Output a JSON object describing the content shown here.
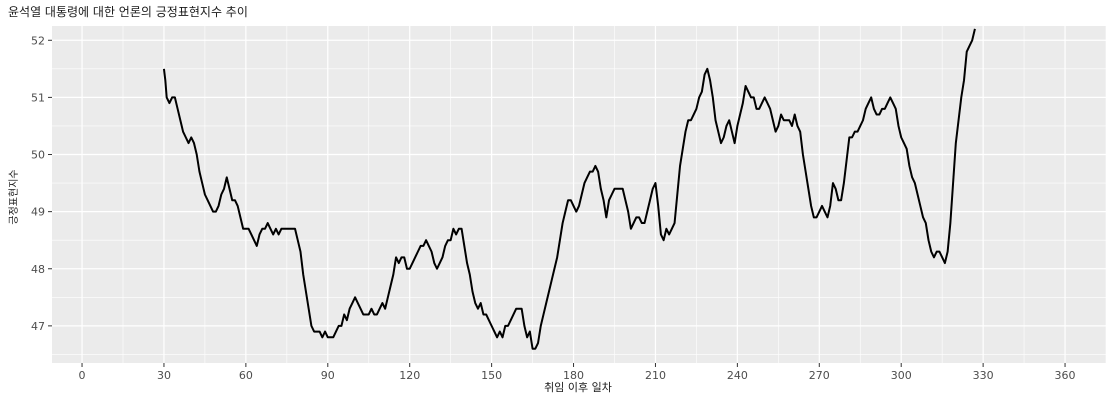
{
  "chart_data": {
    "type": "line",
    "title": "윤석열 대통령에 대한 언론의 긍정표현지수 추이",
    "xlabel": "취임 이후 일차",
    "ylabel": "긍정표현지수",
    "xlim": [
      -11,
      375
    ],
    "ylim": [
      46.35,
      52.25
    ],
    "x_ticks": [
      0,
      30,
      60,
      90,
      120,
      150,
      180,
      210,
      240,
      270,
      300,
      330,
      360
    ],
    "y_ticks": [
      47,
      48,
      49,
      50,
      51,
      52
    ],
    "grid": true,
    "colors": {
      "panel": "#ebebeb",
      "grid": "#ffffff",
      "line": "#000000"
    },
    "series": [
      {
        "points": [
          [
            30,
            51.5
          ],
          [
            30.5,
            51.3
          ],
          [
            31,
            51.0
          ],
          [
            32,
            50.9
          ],
          [
            33,
            51.0
          ],
          [
            34,
            51.0
          ],
          [
            35,
            50.8
          ],
          [
            36,
            50.6
          ],
          [
            37,
            50.4
          ],
          [
            38,
            50.3
          ],
          [
            39,
            50.2
          ],
          [
            40,
            50.3
          ],
          [
            41,
            50.2
          ],
          [
            42,
            50.0
          ],
          [
            43,
            49.7
          ],
          [
            44,
            49.5
          ],
          [
            45,
            49.3
          ],
          [
            46,
            49.2
          ],
          [
            47,
            49.1
          ],
          [
            48,
            49.0
          ],
          [
            49,
            49.0
          ],
          [
            50,
            49.1
          ],
          [
            51,
            49.3
          ],
          [
            52,
            49.4
          ],
          [
            53,
            49.6
          ],
          [
            54,
            49.4
          ],
          [
            55,
            49.2
          ],
          [
            56,
            49.2
          ],
          [
            57,
            49.1
          ],
          [
            58,
            48.9
          ],
          [
            59,
            48.7
          ],
          [
            60,
            48.7
          ],
          [
            61,
            48.7
          ],
          [
            62,
            48.6
          ],
          [
            63,
            48.5
          ],
          [
            64,
            48.4
          ],
          [
            65,
            48.6
          ],
          [
            66,
            48.7
          ],
          [
            67,
            48.7
          ],
          [
            68,
            48.8
          ],
          [
            69,
            48.7
          ],
          [
            70,
            48.6
          ],
          [
            71,
            48.7
          ],
          [
            72,
            48.6
          ],
          [
            73,
            48.7
          ],
          [
            74,
            48.7
          ],
          [
            75,
            48.7
          ],
          [
            76,
            48.7
          ],
          [
            77,
            48.7
          ],
          [
            78,
            48.7
          ],
          [
            79,
            48.5
          ],
          [
            80,
            48.3
          ],
          [
            81,
            47.9
          ],
          [
            82,
            47.6
          ],
          [
            83,
            47.3
          ],
          [
            84,
            47.0
          ],
          [
            85,
            46.9
          ],
          [
            86,
            46.9
          ],
          [
            87,
            46.9
          ],
          [
            88,
            46.8
          ],
          [
            89,
            46.9
          ],
          [
            90,
            46.8
          ],
          [
            91,
            46.8
          ],
          [
            92,
            46.8
          ],
          [
            93,
            46.9
          ],
          [
            94,
            47.0
          ],
          [
            95,
            47.0
          ],
          [
            96,
            47.2
          ],
          [
            97,
            47.1
          ],
          [
            98,
            47.3
          ],
          [
            99,
            47.4
          ],
          [
            100,
            47.5
          ],
          [
            101,
            47.4
          ],
          [
            102,
            47.3
          ],
          [
            103,
            47.2
          ],
          [
            104,
            47.2
          ],
          [
            105,
            47.2
          ],
          [
            106,
            47.3
          ],
          [
            107,
            47.2
          ],
          [
            108,
            47.2
          ],
          [
            109,
            47.3
          ],
          [
            110,
            47.4
          ],
          [
            111,
            47.3
          ],
          [
            112,
            47.5
          ],
          [
            113,
            47.7
          ],
          [
            114,
            47.9
          ],
          [
            115,
            48.2
          ],
          [
            116,
            48.1
          ],
          [
            117,
            48.2
          ],
          [
            118,
            48.2
          ],
          [
            119,
            48.0
          ],
          [
            120,
            48.0
          ],
          [
            121,
            48.1
          ],
          [
            122,
            48.2
          ],
          [
            123,
            48.3
          ],
          [
            124,
            48.4
          ],
          [
            125,
            48.4
          ],
          [
            126,
            48.5
          ],
          [
            127,
            48.4
          ],
          [
            128,
            48.3
          ],
          [
            129,
            48.1
          ],
          [
            130,
            48.0
          ],
          [
            131,
            48.1
          ],
          [
            132,
            48.2
          ],
          [
            133,
            48.4
          ],
          [
            134,
            48.5
          ],
          [
            135,
            48.5
          ],
          [
            136,
            48.7
          ],
          [
            137,
            48.6
          ],
          [
            138,
            48.7
          ],
          [
            139,
            48.7
          ],
          [
            140,
            48.4
          ],
          [
            141,
            48.1
          ],
          [
            142,
            47.9
          ],
          [
            143,
            47.6
          ],
          [
            144,
            47.4
          ],
          [
            145,
            47.3
          ],
          [
            146,
            47.4
          ],
          [
            147,
            47.2
          ],
          [
            148,
            47.2
          ],
          [
            149,
            47.1
          ],
          [
            150,
            47.0
          ],
          [
            151,
            46.9
          ],
          [
            152,
            46.8
          ],
          [
            153,
            46.9
          ],
          [
            154,
            46.8
          ],
          [
            155,
            47.0
          ],
          [
            156,
            47.0
          ],
          [
            157,
            47.1
          ],
          [
            158,
            47.2
          ],
          [
            159,
            47.3
          ],
          [
            160,
            47.3
          ],
          [
            161,
            47.3
          ],
          [
            162,
            47.0
          ],
          [
            163,
            46.8
          ],
          [
            164,
            46.9
          ],
          [
            165,
            46.6
          ],
          [
            166,
            46.6
          ],
          [
            167,
            46.7
          ],
          [
            168,
            47.0
          ],
          [
            169,
            47.2
          ],
          [
            170,
            47.4
          ],
          [
            171,
            47.6
          ],
          [
            172,
            47.8
          ],
          [
            173,
            48.0
          ],
          [
            174,
            48.2
          ],
          [
            175,
            48.5
          ],
          [
            176,
            48.8
          ],
          [
            177,
            49.0
          ],
          [
            178,
            49.2
          ],
          [
            179,
            49.2
          ],
          [
            180,
            49.1
          ],
          [
            181,
            49.0
          ],
          [
            182,
            49.1
          ],
          [
            183,
            49.3
          ],
          [
            184,
            49.5
          ],
          [
            185,
            49.6
          ],
          [
            186,
            49.7
          ],
          [
            187,
            49.7
          ],
          [
            188,
            49.8
          ],
          [
            189,
            49.7
          ],
          [
            190,
            49.4
          ],
          [
            191,
            49.2
          ],
          [
            192,
            48.9
          ],
          [
            193,
            49.2
          ],
          [
            194,
            49.3
          ],
          [
            195,
            49.4
          ],
          [
            196,
            49.4
          ],
          [
            197,
            49.4
          ],
          [
            198,
            49.4
          ],
          [
            199,
            49.2
          ],
          [
            200,
            49.0
          ],
          [
            201,
            48.7
          ],
          [
            202,
            48.8
          ],
          [
            203,
            48.9
          ],
          [
            204,
            48.9
          ],
          [
            205,
            48.8
          ],
          [
            206,
            48.8
          ],
          [
            207,
            49.0
          ],
          [
            208,
            49.2
          ],
          [
            209,
            49.4
          ],
          [
            210,
            49.5
          ],
          [
            211,
            49.1
          ],
          [
            212,
            48.6
          ],
          [
            213,
            48.5
          ],
          [
            214,
            48.7
          ],
          [
            215,
            48.6
          ],
          [
            216,
            48.7
          ],
          [
            217,
            48.8
          ],
          [
            218,
            49.3
          ],
          [
            219,
            49.8
          ],
          [
            220,
            50.1
          ],
          [
            221,
            50.4
          ],
          [
            222,
            50.6
          ],
          [
            223,
            50.6
          ],
          [
            224,
            50.7
          ],
          [
            225,
            50.8
          ],
          [
            226,
            51.0
          ],
          [
            227,
            51.1
          ],
          [
            228,
            51.4
          ],
          [
            229,
            51.5
          ],
          [
            230,
            51.3
          ],
          [
            231,
            51.0
          ],
          [
            232,
            50.6
          ],
          [
            233,
            50.4
          ],
          [
            234,
            50.2
          ],
          [
            235,
            50.3
          ],
          [
            236,
            50.5
          ],
          [
            237,
            50.6
          ],
          [
            238,
            50.4
          ],
          [
            239,
            50.2
          ],
          [
            240,
            50.5
          ],
          [
            241,
            50.7
          ],
          [
            242,
            50.9
          ],
          [
            243,
            51.2
          ],
          [
            244,
            51.1
          ],
          [
            245,
            51.0
          ],
          [
            246,
            51.0
          ],
          [
            247,
            50.8
          ],
          [
            248,
            50.8
          ],
          [
            249,
            50.9
          ],
          [
            250,
            51.0
          ],
          [
            251,
            50.9
          ],
          [
            252,
            50.8
          ],
          [
            253,
            50.6
          ],
          [
            254,
            50.4
          ],
          [
            255,
            50.5
          ],
          [
            256,
            50.7
          ],
          [
            257,
            50.6
          ],
          [
            258,
            50.6
          ],
          [
            259,
            50.6
          ],
          [
            260,
            50.5
          ],
          [
            261,
            50.7
          ],
          [
            262,
            50.5
          ],
          [
            263,
            50.4
          ],
          [
            264,
            50.0
          ],
          [
            265,
            49.7
          ],
          [
            266,
            49.4
          ],
          [
            267,
            49.1
          ],
          [
            268,
            48.9
          ],
          [
            269,
            48.9
          ],
          [
            270,
            49.0
          ],
          [
            271,
            49.1
          ],
          [
            272,
            49.0
          ],
          [
            273,
            48.9
          ],
          [
            274,
            49.1
          ],
          [
            275,
            49.5
          ],
          [
            276,
            49.4
          ],
          [
            277,
            49.2
          ],
          [
            278,
            49.2
          ],
          [
            279,
            49.5
          ],
          [
            280,
            49.9
          ],
          [
            281,
            50.3
          ],
          [
            282,
            50.3
          ],
          [
            283,
            50.4
          ],
          [
            284,
            50.4
          ],
          [
            285,
            50.5
          ],
          [
            286,
            50.6
          ],
          [
            287,
            50.8
          ],
          [
            288,
            50.9
          ],
          [
            289,
            51.0
          ],
          [
            290,
            50.8
          ],
          [
            291,
            50.7
          ],
          [
            292,
            50.7
          ],
          [
            293,
            50.8
          ],
          [
            294,
            50.8
          ],
          [
            295,
            50.9
          ],
          [
            296,
            51.0
          ],
          [
            297,
            50.9
          ],
          [
            298,
            50.8
          ],
          [
            299,
            50.5
          ],
          [
            300,
            50.3
          ],
          [
            301,
            50.2
          ],
          [
            302,
            50.1
          ],
          [
            303,
            49.8
          ],
          [
            304,
            49.6
          ],
          [
            305,
            49.5
          ],
          [
            306,
            49.3
          ],
          [
            307,
            49.1
          ],
          [
            308,
            48.9
          ],
          [
            309,
            48.8
          ],
          [
            310,
            48.5
          ],
          [
            311,
            48.3
          ],
          [
            312,
            48.2
          ],
          [
            313,
            48.3
          ],
          [
            314,
            48.3
          ],
          [
            315,
            48.2
          ],
          [
            316,
            48.1
          ],
          [
            317,
            48.3
          ],
          [
            318,
            48.8
          ],
          [
            319,
            49.5
          ],
          [
            320,
            50.2
          ],
          [
            321,
            50.6
          ],
          [
            322,
            51.0
          ],
          [
            323,
            51.3
          ],
          [
            324,
            51.8
          ],
          [
            325,
            51.9
          ],
          [
            326,
            52.0
          ],
          [
            327,
            52.2
          ]
        ]
      }
    ]
  }
}
